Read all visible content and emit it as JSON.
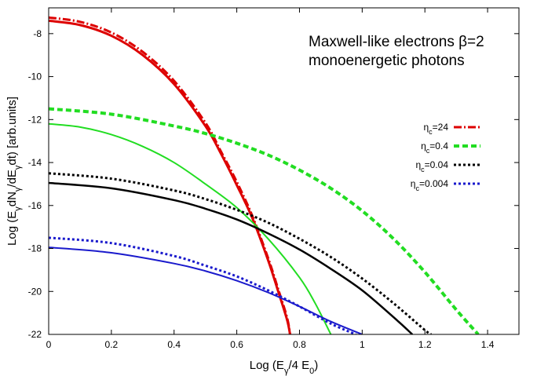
{
  "chart_data": {
    "type": "line",
    "xlabel": "Log (E_γ/4 E_0)",
    "ylabel": "Log (E_γdN_γ/dE_γdt) [arb.units]",
    "xlim": [
      0,
      1.5
    ],
    "ylim": [
      -22,
      -6.8
    ],
    "xticks": [
      0,
      0.2,
      0.4,
      0.6,
      0.8,
      1,
      1.2,
      1.4
    ],
    "xtick_labels": [
      "0",
      "0.2",
      "0.4",
      "0.6",
      "0.8",
      "1",
      "1.2",
      "1.4"
    ],
    "yticks": [
      -8,
      -10,
      -12,
      -14,
      -16,
      -18,
      -20,
      -22
    ],
    "ytick_labels": [
      "-8",
      "-10",
      "-12",
      "-14",
      "-16",
      "-18",
      "-20",
      "-22"
    ],
    "grid": false,
    "legend_position": "right-middle",
    "annotation": {
      "line1": "Maxwell-like electrons β=2",
      "line2": "monoenergetic photons"
    },
    "legend": [
      {
        "eta": "η",
        "sub": "c",
        "value": "=24",
        "color": "#dd0000",
        "dash": "dashdot"
      },
      {
        "eta": "η",
        "sub": "c",
        "value": "=0.4",
        "color": "#22dd22",
        "dash": "dashed"
      },
      {
        "eta": "η",
        "sub": "c",
        "value": "=0.04",
        "color": "#000000",
        "dash": "dotted"
      },
      {
        "eta": "η",
        "sub": "c",
        "value": "=0.004",
        "color": "#1a1acc",
        "dash": "dotted"
      }
    ],
    "series": [
      {
        "name": "η_c=24",
        "style": "dashdot",
        "color": "#dd0000",
        "width": 3,
        "x": [
          0,
          0.1,
          0.2,
          0.3,
          0.4,
          0.5,
          0.55,
          0.6,
          0.65,
          0.7,
          0.73,
          0.76,
          0.77
        ],
        "y": [
          -7.25,
          -7.45,
          -7.95,
          -8.85,
          -10.2,
          -12.15,
          -13.5,
          -14.9,
          -16.5,
          -18.45,
          -19.8,
          -21.2,
          -22
        ]
      },
      {
        "name": "",
        "style": "solid",
        "color": "#dd0000",
        "width": 3,
        "x": [
          0,
          0.1,
          0.2,
          0.3,
          0.4,
          0.5,
          0.55,
          0.6,
          0.65,
          0.7,
          0.73,
          0.76,
          0.77
        ],
        "y": [
          -7.4,
          -7.6,
          -8.1,
          -9.0,
          -10.35,
          -12.3,
          -13.6,
          -15.05,
          -16.6,
          -18.55,
          -19.9,
          -21.3,
          -22
        ]
      },
      {
        "name": "η_c=0.4",
        "style": "dashed",
        "color": "#22dd22",
        "width": 4,
        "x": [
          0,
          0.2,
          0.4,
          0.5,
          0.6,
          0.7,
          0.8,
          0.9,
          1.0,
          1.1,
          1.2,
          1.3,
          1.37
        ],
        "y": [
          -11.5,
          -11.75,
          -12.3,
          -12.65,
          -13.1,
          -13.65,
          -14.35,
          -15.2,
          -16.25,
          -17.55,
          -19.1,
          -20.85,
          -22
        ]
      },
      {
        "name": "",
        "style": "solid",
        "color": "#22dd22",
        "width": 2,
        "x": [
          0,
          0.1,
          0.2,
          0.3,
          0.4,
          0.5,
          0.6,
          0.7,
          0.8,
          0.85,
          0.9
        ],
        "y": [
          -12.2,
          -12.35,
          -12.7,
          -13.25,
          -14.0,
          -15.0,
          -16.1,
          -17.55,
          -19.35,
          -20.55,
          -22
        ]
      },
      {
        "name": "η_c=0.04",
        "style": "dotted",
        "color": "#000000",
        "width": 3,
        "x": [
          0,
          0.2,
          0.4,
          0.5,
          0.6,
          0.7,
          0.8,
          0.9,
          1.0,
          1.1,
          1.2,
          1.22
        ],
        "y": [
          -14.5,
          -14.75,
          -15.3,
          -15.7,
          -16.2,
          -16.8,
          -17.55,
          -18.4,
          -19.4,
          -20.55,
          -21.8,
          -22
        ]
      },
      {
        "name": "",
        "style": "solid",
        "color": "#000000",
        "width": 2.5,
        "x": [
          0,
          0.2,
          0.4,
          0.5,
          0.6,
          0.7,
          0.8,
          0.9,
          1.0,
          1.1,
          1.16
        ],
        "y": [
          -14.95,
          -15.2,
          -15.75,
          -16.15,
          -16.65,
          -17.3,
          -18.05,
          -18.95,
          -19.95,
          -21.2,
          -22
        ]
      },
      {
        "name": "η_c=0.004",
        "style": "dotted",
        "color": "#1a1acc",
        "width": 3,
        "x": [
          0,
          0.2,
          0.4,
          0.5,
          0.6,
          0.7,
          0.8,
          0.9,
          0.98
        ],
        "y": [
          -17.5,
          -17.75,
          -18.35,
          -18.8,
          -19.3,
          -19.95,
          -20.7,
          -21.5,
          -22
        ]
      },
      {
        "name": "",
        "style": "solid",
        "color": "#1a1acc",
        "width": 2,
        "x": [
          0,
          0.2,
          0.4,
          0.5,
          0.6,
          0.7,
          0.8,
          0.9,
          1.0
        ],
        "y": [
          -17.95,
          -18.2,
          -18.7,
          -19.05,
          -19.5,
          -20.05,
          -20.7,
          -21.4,
          -22
        ]
      }
    ]
  }
}
